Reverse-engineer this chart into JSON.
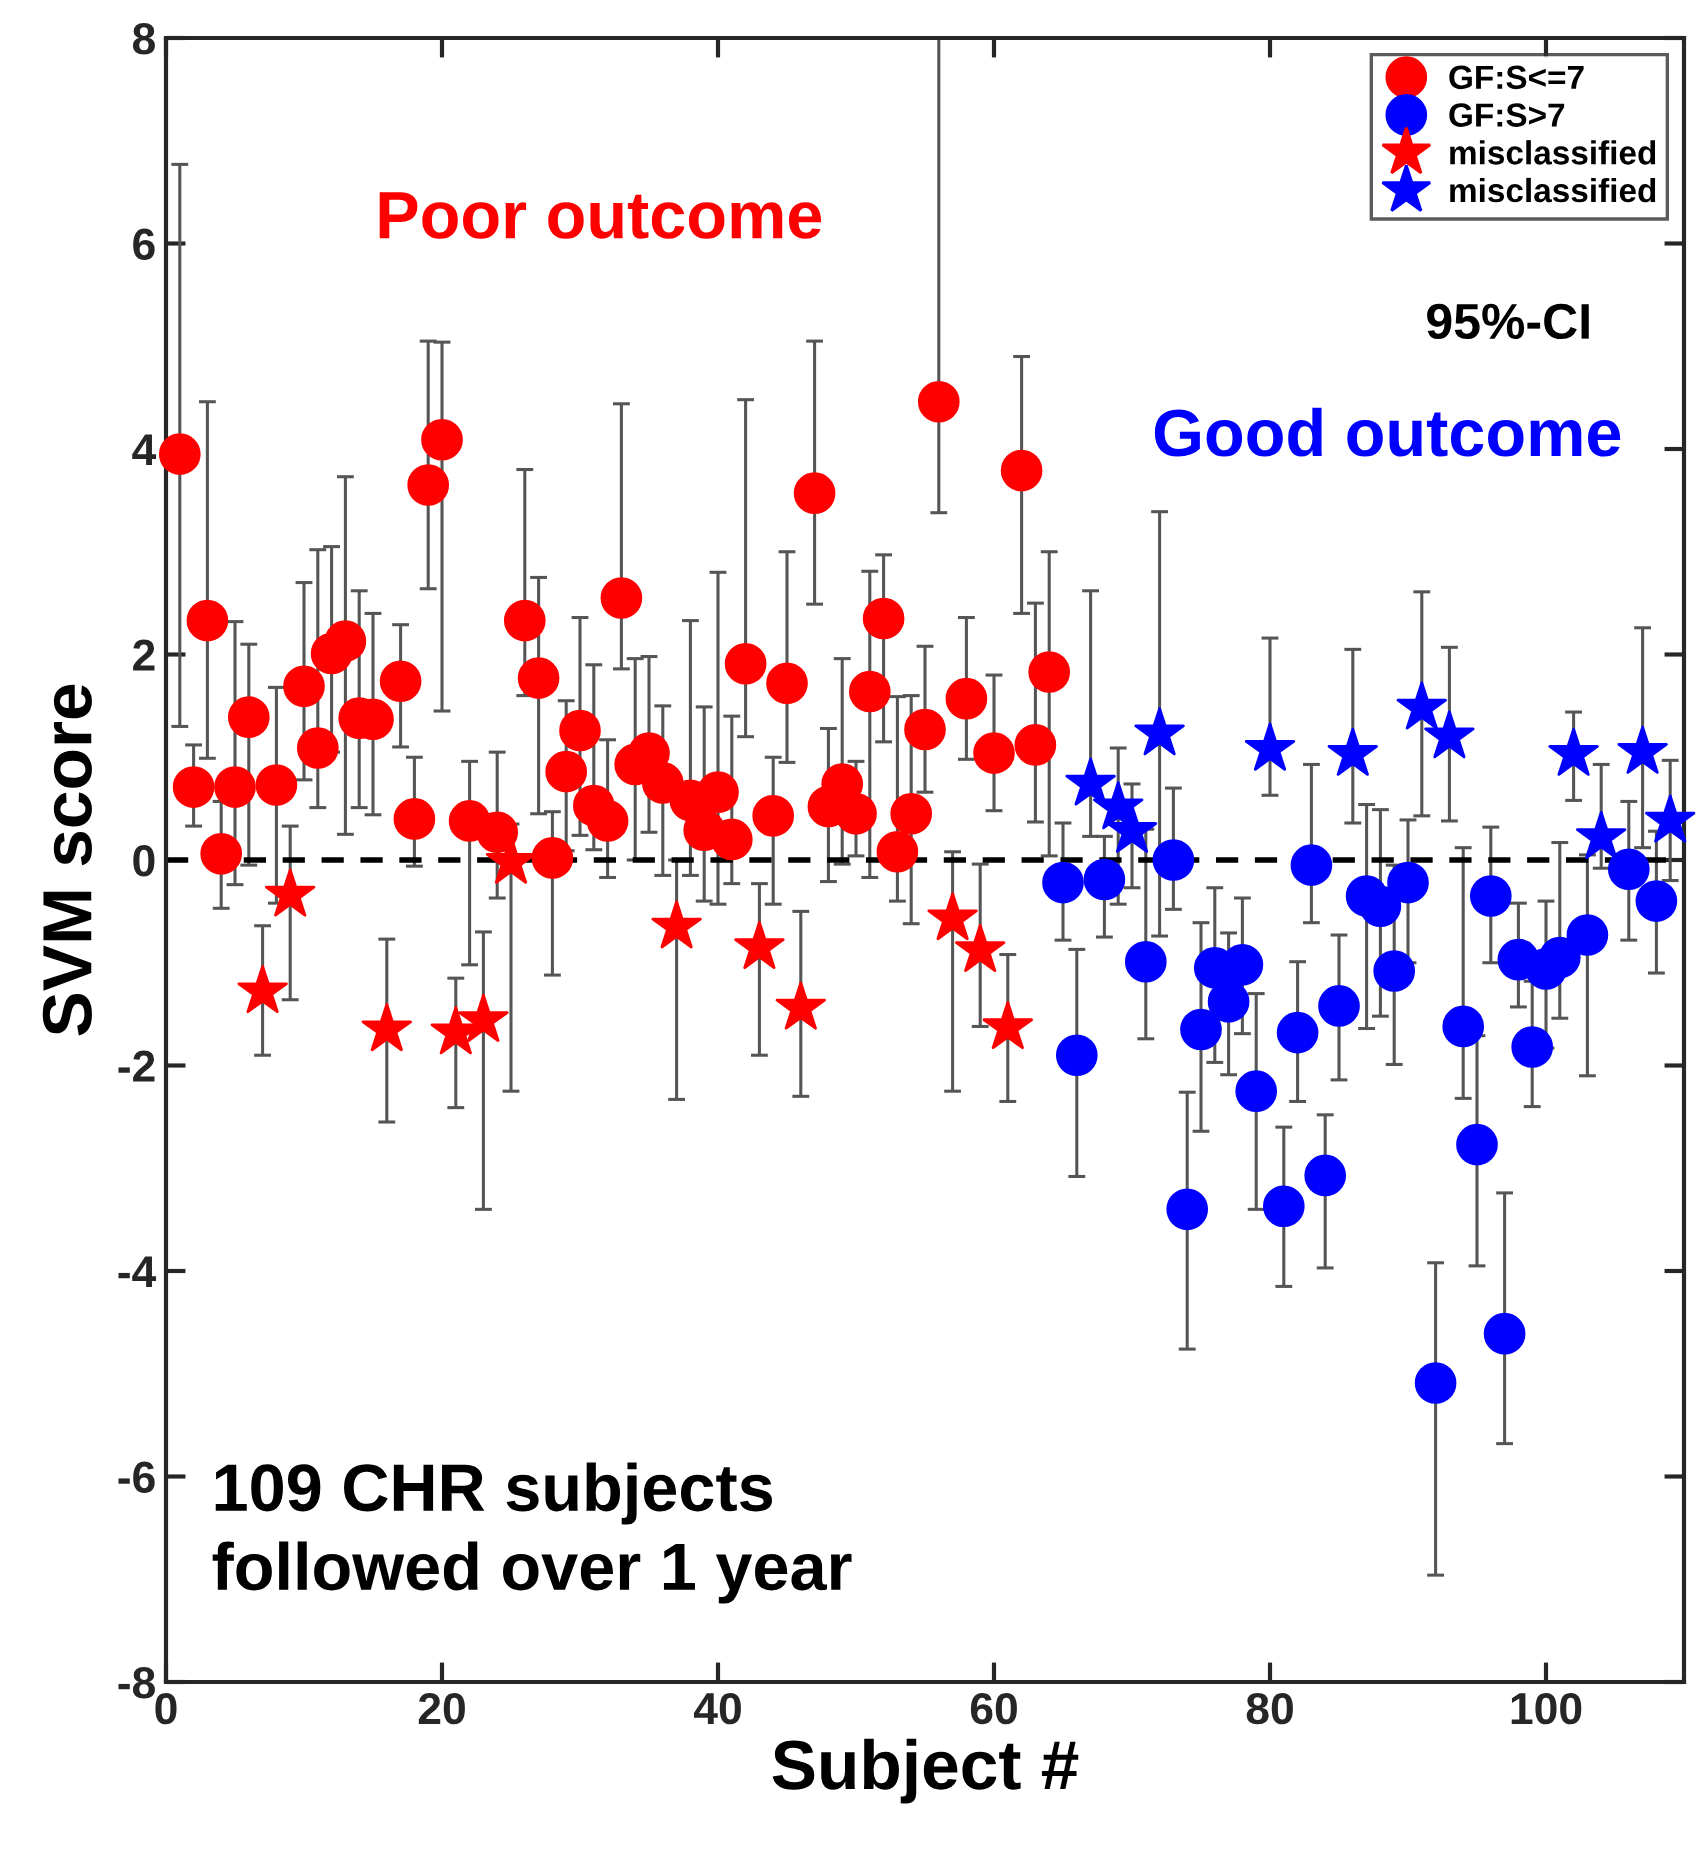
{
  "chart_data": {
    "type": "scatter",
    "xlabel": "Subject #",
    "ylabel": "SVM score",
    "xlim": [
      0,
      110
    ],
    "ylim": [
      -8,
      8
    ],
    "xticks": [
      0,
      20,
      40,
      60,
      80,
      100
    ],
    "yticks": [
      -8,
      -6,
      -4,
      -2,
      0,
      2,
      4,
      6,
      8
    ],
    "grid": false,
    "legend": "top right",
    "ref_lines": [
      {
        "axis": "y",
        "value": 0,
        "color": "#000000",
        "line_style": "dashed"
      }
    ],
    "annotations": [
      "Poor outcome",
      "Good outcome",
      "95%-CI",
      "109 CHR subjects\nfollowed over 1 year"
    ],
    "series": [
      {
        "name": "GF:S<=7",
        "color": "#ff0000",
        "marker": "circle",
        "x": [
          1,
          2,
          3,
          4,
          5,
          6,
          8,
          10,
          11,
          12,
          13,
          14,
          15,
          17,
          18,
          19,
          20,
          22,
          24,
          26,
          27,
          28,
          29,
          30,
          31,
          32,
          33,
          34,
          35,
          36,
          38,
          39,
          40,
          41,
          42,
          44,
          45,
          47,
          48,
          49,
          50,
          51,
          52,
          53,
          54,
          55,
          56,
          58,
          60,
          62,
          63,
          64
        ],
        "values": [
          3.95,
          0.71,
          2.33,
          0.06,
          0.71,
          1.39,
          0.73,
          1.69,
          1.09,
          2.01,
          2.13,
          1.38,
          1.37,
          1.74,
          0.4,
          3.65,
          4.09,
          0.38,
          0.27,
          2.33,
          1.77,
          0.02,
          0.86,
          1.26,
          0.53,
          0.38,
          2.55,
          0.93,
          1.04,
          0.75,
          0.58,
          0.29,
          0.66,
          0.2,
          1.91,
          0.43,
          1.72,
          3.57,
          0.52,
          0.74,
          0.45,
          1.64,
          2.35,
          0.08,
          0.45,
          1.27,
          4.46,
          1.57,
          1.04,
          3.79,
          1.12,
          1.83
        ],
        "errors": [
          [
            1.3,
            6.77
          ],
          [
            0.33,
            1.12
          ],
          [
            0.99,
            4.46
          ],
          [
            -0.47,
            0.57
          ],
          [
            -0.24,
            2.32
          ],
          [
            -0.05,
            2.1
          ],
          [
            -0.42,
            1.68
          ],
          [
            0.78,
            2.7
          ],
          [
            0.51,
            3.02
          ],
          [
            1.05,
            3.05
          ],
          [
            0.25,
            3.73
          ],
          [
            0.51,
            2.62
          ],
          [
            0.44,
            2.4
          ],
          [
            1.1,
            2.29
          ],
          [
            -0.06,
            1.0
          ],
          [
            2.64,
            5.05
          ],
          [
            1.45,
            5.04
          ],
          [
            -1.02,
            0.96
          ],
          [
            -0.37,
            1.05
          ],
          [
            1.6,
            3.8
          ],
          [
            0.45,
            2.75
          ],
          [
            -1.12,
            0.47
          ],
          [
            0.09,
            1.55
          ],
          [
            0.24,
            2.36
          ],
          [
            0.1,
            1.9
          ],
          [
            -0.17,
            1.17
          ],
          [
            1.86,
            4.44
          ],
          [
            0.0,
            1.96
          ],
          [
            0.27,
            1.98
          ],
          [
            -0.15,
            1.5
          ],
          [
            -0.15,
            2.33
          ],
          [
            -0.4,
            1.49
          ],
          [
            -0.43,
            2.8
          ],
          [
            -0.23,
            1.4
          ],
          [
            1.2,
            4.48
          ],
          [
            -0.43,
            1.0
          ],
          [
            0.95,
            3.0
          ],
          [
            2.49,
            5.05
          ],
          [
            -0.21,
            1.28
          ],
          [
            -0.04,
            1.96
          ],
          [
            0.04,
            0.96
          ],
          [
            -0.17,
            2.81
          ],
          [
            1.15,
            2.97
          ],
          [
            -0.4,
            1.59
          ],
          [
            -0.62,
            1.6
          ],
          [
            0.66,
            2.08
          ],
          [
            3.38,
            8
          ],
          [
            0.98,
            2.36
          ],
          [
            0.48,
            1.8
          ],
          [
            2.4,
            4.9
          ],
          [
            0.37,
            2.5
          ],
          [
            0.04,
            3.0
          ]
        ]
      },
      {
        "name": "GF:S>7",
        "color": "#0000ff",
        "marker": "circle",
        "x": [
          65,
          66,
          68,
          71,
          73,
          74,
          75,
          76,
          77,
          78,
          79,
          81,
          82,
          83,
          84,
          85,
          87,
          88,
          89,
          90,
          92,
          94,
          95,
          96,
          97,
          98,
          99,
          100,
          101,
          103,
          106,
          108
        ],
        "values": [
          -0.22,
          -1.9,
          -0.19,
          -0.99,
          0.0,
          -3.4,
          -1.65,
          -1.05,
          -1.38,
          -1.02,
          -2.25,
          -3.37,
          -1.68,
          -0.05,
          -3.07,
          -1.42,
          -0.35,
          -0.45,
          -1.08,
          -0.22,
          -5.09,
          -1.62,
          -2.77,
          -0.35,
          -4.61,
          -0.97,
          -1.82,
          -1.06,
          -0.95,
          -0.73,
          -0.09,
          -0.4
        ],
        "errors": [
          [
            -0.78,
            0.36
          ],
          [
            -3.08,
            -0.87
          ],
          [
            -0.75,
            0.23
          ],
          [
            -1.74,
            0.3
          ],
          [
            -0.48,
            0.7
          ],
          [
            -4.76,
            -2.26
          ],
          [
            -2.64,
            -0.61
          ],
          [
            -1.97,
            -0.27
          ],
          [
            -2.09,
            -0.71
          ],
          [
            -1.69,
            -0.37
          ],
          [
            -3.4,
            -1.3
          ],
          [
            -4.15,
            -2.6
          ],
          [
            -2.35,
            -0.99
          ],
          [
            -0.61,
            0.93
          ],
          [
            -3.97,
            -2.48
          ],
          [
            -2.14,
            -0.73
          ],
          [
            -1.64,
            0.54
          ],
          [
            -1.52,
            0.49
          ],
          [
            -1.99,
            -0.05
          ],
          [
            -1.0,
            0.39
          ],
          [
            -6.96,
            -3.92
          ],
          [
            -2.32,
            0.12
          ],
          [
            -3.95,
            -1.71
          ],
          [
            -1.0,
            0.32
          ],
          [
            -5.68,
            -3.24
          ],
          [
            -1.43,
            -0.42
          ],
          [
            -2.4,
            -1.18
          ],
          [
            -1.83,
            -0.4
          ],
          [
            -1.54,
            0.17
          ],
          [
            -2.1,
            0.05
          ],
          [
            -0.78,
            0.57
          ],
          [
            -1.1,
            0.28
          ]
        ]
      },
      {
        "name": "misclassified",
        "color": "#ff0000",
        "marker": "star",
        "x": [
          7,
          9,
          16,
          21,
          23,
          25,
          37,
          43,
          46,
          57,
          59,
          61
        ],
        "values": [
          -1.28,
          -0.34,
          -1.65,
          -1.68,
          -1.56,
          -0.02,
          -0.65,
          -0.85,
          -1.44,
          -0.57,
          -0.88,
          -1.63
        ],
        "errors": [
          [
            -1.9,
            -0.64
          ],
          [
            -1.36,
            0.33
          ],
          [
            -2.55,
            -0.77
          ],
          [
            -2.41,
            -1.15
          ],
          [
            -3.4,
            -0.7
          ],
          [
            -2.25,
            0.35
          ],
          [
            -2.33,
            0.0
          ],
          [
            -1.9,
            -0.23
          ],
          [
            -2.3,
            -0.5
          ],
          [
            -2.25,
            0.08
          ],
          [
            -1.62,
            -0.04
          ],
          [
            -2.35,
            -0.92
          ]
        ]
      },
      {
        "name": "misclassified",
        "color": "#0000ff",
        "marker": "star",
        "x": [
          67,
          69,
          70,
          72,
          80,
          86,
          91,
          93,
          102,
          104,
          107,
          109
        ],
        "values": [
          0.74,
          0.51,
          0.28,
          1.23,
          1.08,
          1.03,
          1.48,
          1.2,
          1.03,
          0.22,
          1.05,
          0.38
        ],
        "errors": [
          [
            0.23,
            2.62
          ],
          [
            -0.43,
            1.09
          ],
          [
            -0.27,
            0.74
          ],
          [
            -0.74,
            3.39
          ],
          [
            0.63,
            2.16
          ],
          [
            0.36,
            2.05
          ],
          [
            0.43,
            2.61
          ],
          [
            0.38,
            2.07
          ],
          [
            0.58,
            1.44
          ],
          [
            -0.08,
            0.93
          ],
          [
            0.12,
            2.26
          ],
          [
            -0.2,
            0.97
          ]
        ]
      }
    ]
  }
}
